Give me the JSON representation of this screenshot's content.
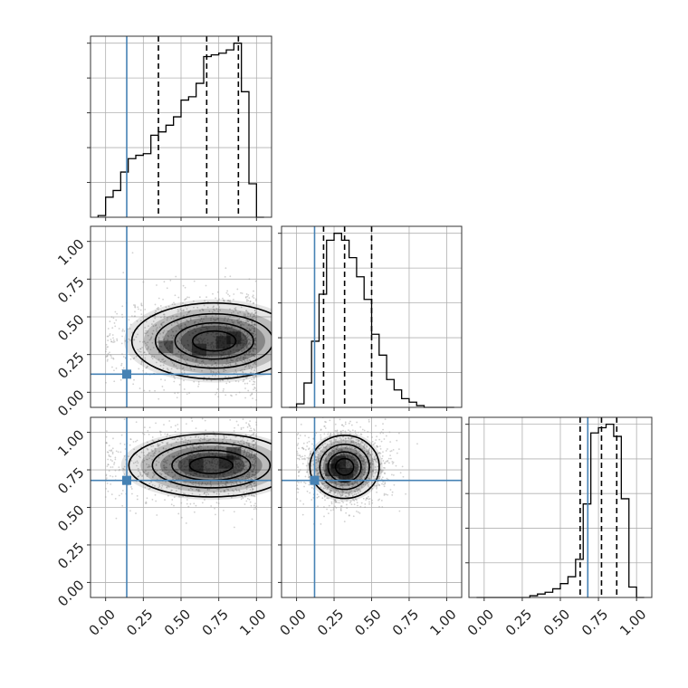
{
  "chart_data": {
    "type": "corner",
    "parameters": 3,
    "axis_range": [
      -0.1,
      1.1
    ],
    "ticks": [
      "0.00",
      "0.25",
      "0.50",
      "0.75",
      "1.00"
    ],
    "tick_values": [
      0,
      0.25,
      0.5,
      0.75,
      1.0
    ],
    "grid": true,
    "colors": {
      "truth": "#4682b4",
      "hist": "#000000",
      "points": "#9a9a9a",
      "density": "#000000"
    },
    "truths": [
      0.14,
      0.12,
      0.68
    ],
    "quantiles": [
      [
        0.35,
        0.67,
        0.88
      ],
      [
        0.18,
        0.32,
        0.5
      ],
      [
        0.63,
        0.77,
        0.87
      ]
    ],
    "histograms": [
      {
        "bin_edges": [
          -0.05,
          0.0,
          0.05,
          0.1,
          0.15,
          0.2,
          0.25,
          0.3,
          0.35,
          0.4,
          0.45,
          0.5,
          0.55,
          0.6,
          0.65,
          0.7,
          0.75,
          0.8,
          0.85,
          0.9,
          0.95,
          1.0,
          1.05
        ],
        "counts": [
          0.01,
          0.12,
          0.16,
          0.27,
          0.35,
          0.37,
          0.38,
          0.49,
          0.51,
          0.55,
          0.6,
          0.7,
          0.72,
          0.8,
          0.96,
          0.97,
          0.98,
          1.0,
          1.04,
          0.75,
          0.2,
          0.0
        ]
      },
      {
        "bin_edges": [
          -0.05,
          0.0,
          0.05,
          0.1,
          0.15,
          0.2,
          0.25,
          0.3,
          0.35,
          0.4,
          0.45,
          0.5,
          0.55,
          0.6,
          0.65,
          0.7,
          0.75,
          0.8,
          0.85,
          0.9,
          0.95,
          1.0,
          1.05
        ],
        "counts": [
          0,
          0.02,
          0.14,
          0.38,
          0.65,
          0.96,
          1.0,
          0.96,
          0.86,
          0.75,
          0.62,
          0.42,
          0.3,
          0.16,
          0.1,
          0.05,
          0.03,
          0.01,
          0,
          0,
          0,
          0
        ]
      },
      {
        "bin_edges": [
          -0.05,
          0.0,
          0.05,
          0.1,
          0.15,
          0.2,
          0.25,
          0.3,
          0.35,
          0.4,
          0.45,
          0.5,
          0.55,
          0.6,
          0.65,
          0.7,
          0.75,
          0.8,
          0.85,
          0.9,
          0.95,
          1.0,
          1.05
        ],
        "counts": [
          0,
          0,
          0,
          0,
          0,
          0,
          0,
          0.01,
          0.02,
          0.03,
          0.05,
          0.08,
          0.12,
          0.22,
          0.54,
          0.95,
          0.98,
          1.0,
          0.93,
          0.57,
          0.06,
          0
        ]
      }
    ],
    "pairs": [
      {
        "x_param": 0,
        "y_param": 1,
        "center": [
          0.72,
          0.34
        ],
        "spread": [
          0.26,
          0.12
        ],
        "skew": -0.35,
        "seed": 11,
        "density_peaks": [
          [
            0.85,
            0.36
          ],
          [
            0.78,
            0.33
          ],
          [
            0.62,
            0.28
          ],
          [
            0.4,
            0.3
          ]
        ]
      },
      {
        "x_param": 0,
        "y_param": 2,
        "center": [
          0.7,
          0.78
        ],
        "spread": [
          0.26,
          0.1
        ],
        "skew": -0.3,
        "seed": 23,
        "density_peaks": [
          [
            0.8,
            0.8
          ],
          [
            0.6,
            0.78
          ],
          [
            0.85,
            0.86
          ]
        ]
      },
      {
        "x_param": 1,
        "y_param": 2,
        "center": [
          0.32,
          0.77
        ],
        "spread": [
          0.11,
          0.1
        ],
        "skew": 0.0,
        "seed": 37,
        "density_peaks": [
          [
            0.28,
            0.8
          ],
          [
            0.24,
            0.75
          ],
          [
            0.33,
            0.72
          ]
        ]
      }
    ]
  }
}
